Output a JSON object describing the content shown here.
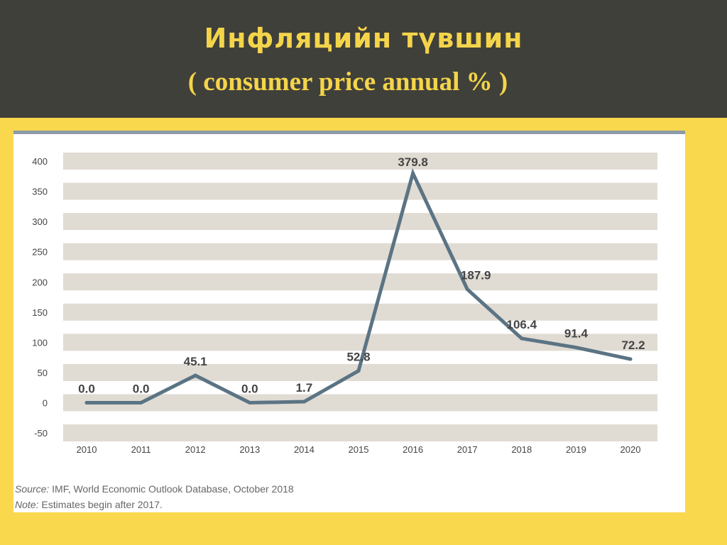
{
  "header": {
    "title": "Инфляцийн түвшин",
    "subtitle": "( consumer price annual % )"
  },
  "chart_data": {
    "type": "line",
    "categories": [
      "2010",
      "2011",
      "2012",
      "2013",
      "2014",
      "2015",
      "2016",
      "2017",
      "2018",
      "2019",
      "2020"
    ],
    "series": [
      {
        "values": [
          0.0,
          0.0,
          45.1,
          0.0,
          1.7,
          52.8,
          379.8,
          187.9,
          106.4,
          91.4,
          72.2
        ]
      }
    ],
    "data_labels": [
      "0.0",
      "0.0",
      "45.1",
      "0.0",
      "1.7",
      "52.8",
      "379.8",
      "187.9",
      "106.4",
      "91.4",
      "72.2"
    ],
    "y_ticks": [
      400,
      350,
      300,
      250,
      200,
      150,
      100,
      50,
      0,
      -50
    ],
    "ylim": [
      -50,
      400
    ],
    "grid": "horizontal bands",
    "line_color": "#5b7484",
    "band_color": "#e0dbd3"
  },
  "notes": {
    "source_label": "Source:",
    "source_text": " IMF, World Economic Outlook Database, October 2018",
    "note_label": "Note:",
    "note_text": " Estimates begin after 2017."
  }
}
